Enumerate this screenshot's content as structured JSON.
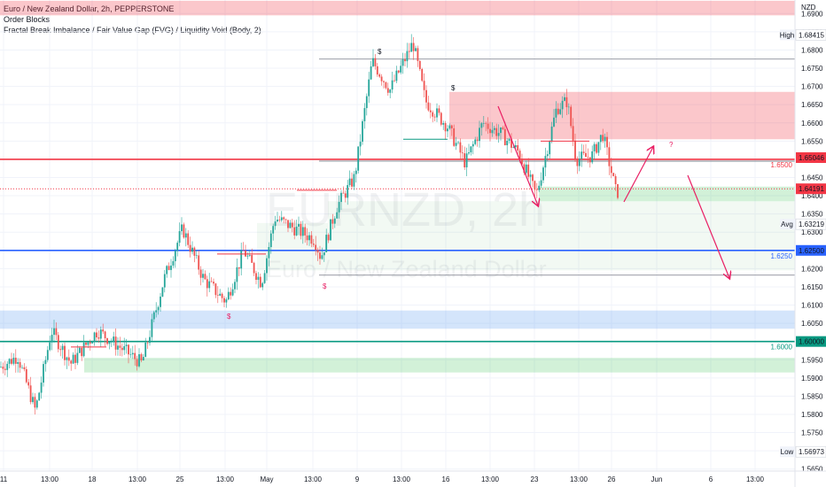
{
  "legend": {
    "title": "Euro / New Zealand Dollar, 2h, PEPPERSTONE",
    "indicator_1": "Order Blocks",
    "indicator_2": "Fractal Break Imbalance / Fair Value Gap (FVG) / Liquidity Void (Body, 2)"
  },
  "watermark": {
    "ticker": "EURNZD, 2h",
    "name": "Euro / New Zealand Dollar"
  },
  "currency_label": "NZD",
  "colors": {
    "up": "#26a69a",
    "down": "#ef5350",
    "red_line": "#f23645",
    "blue_line": "#2962ff",
    "green_line": "#089981",
    "pink": "#e91e63",
    "red_zone": "#f7b7b7",
    "green_zone": "#c8f0c8",
    "blue_zone": "#cfe4fb"
  },
  "chart_data": {
    "type": "candlestick",
    "symbol": "EURNZD",
    "timeframe": "2h",
    "ylim": [
      1.5625,
      1.6925
    ],
    "y_ticks": [
      1.565,
      1.57,
      1.575,
      1.58,
      1.585,
      1.59,
      1.595,
      1.6,
      1.605,
      1.61,
      1.615,
      1.62,
      1.625,
      1.63,
      1.635,
      1.64,
      1.645,
      1.65,
      1.655,
      1.66,
      1.665,
      1.67,
      1.675,
      1.68,
      1.685,
      1.69
    ],
    "x_ticks": [
      "11",
      "13:00",
      "18",
      "13:00",
      "25",
      "13:00",
      "May",
      "13:00",
      "9",
      "13:00",
      "16",
      "13:00",
      "23",
      "13:00",
      "26",
      "Jun",
      "6",
      "13:00"
    ],
    "price_labels": [
      {
        "text": "High",
        "value": 1.68415
      },
      {
        "text": "Avg",
        "value": 1.63219
      },
      {
        "text": "Low",
        "value": 1.56973
      },
      {
        "text": "",
        "value": 1.65046,
        "kind": "red"
      },
      {
        "text": "",
        "value": 1.64191,
        "kind": "current"
      },
      {
        "text": "",
        "value": 1.625,
        "kind": "blue"
      },
      {
        "text": "",
        "value": 1.6,
        "kind": "green"
      }
    ],
    "horizontal_levels": [
      {
        "value": 1.65,
        "label": "1.6500",
        "color": "red"
      },
      {
        "value": 1.625,
        "label": "1.6250",
        "color": "blue"
      },
      {
        "value": 1.6,
        "label": "1.6000",
        "color": "green"
      }
    ],
    "zones": [
      {
        "kind": "supply",
        "from": 1.6895,
        "to": 1.6935
      },
      {
        "kind": "supply",
        "from": 1.6555,
        "to": 1.6685
      },
      {
        "kind": "demand",
        "from": 1.6385,
        "to": 1.6425
      },
      {
        "kind": "demand",
        "from": 1.5915,
        "to": 1.5955
      },
      {
        "kind": "liquidity",
        "from": 1.6035,
        "to": 1.6085
      }
    ],
    "annotations": [
      "$",
      "$",
      "$",
      "$",
      "?"
    ],
    "last_price": 1.64191
  }
}
